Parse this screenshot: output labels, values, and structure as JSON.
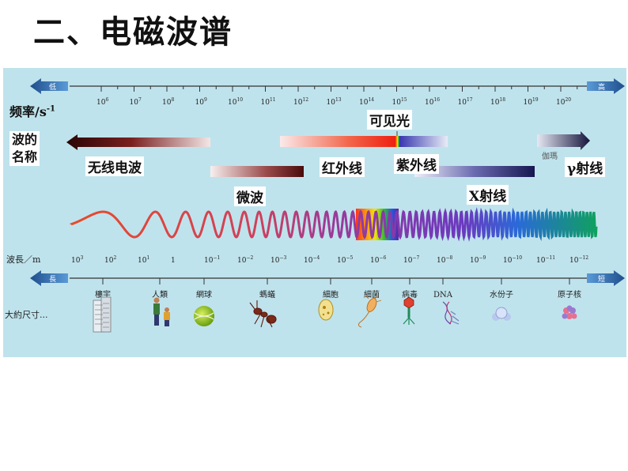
{
  "title": "二、电磁波谱",
  "colors": {
    "panel": "#bfe3ec",
    "arrow": "#1f4e8c",
    "band_dark": "#3a0a0a"
  },
  "freq": {
    "axis_label": "频率/s",
    "axis_label_exp": "-1",
    "low": "低",
    "high": "高",
    "exponents": [
      "6",
      "7",
      "8",
      "9",
      "10",
      "11",
      "12",
      "13",
      "14",
      "15",
      "16",
      "17",
      "18",
      "19",
      "20"
    ],
    "base": "10"
  },
  "bands": {
    "name_label_line1": "波的",
    "name_label_line2": "名称",
    "radio": "无线电波",
    "microwave": "微波",
    "infrared": "红外线",
    "visible": "可见光",
    "ultraviolet": "紫外线",
    "xray": "X射线",
    "gamma": "γ射线",
    "gamma_small": "伽瑪"
  },
  "wavelength": {
    "axis_label": "波長／m",
    "long": "長",
    "short": "短",
    "ticks": [
      {
        "base": "10",
        "exp": "3"
      },
      {
        "base": "10",
        "exp": "2"
      },
      {
        "base": "10",
        "exp": "1"
      },
      {
        "base": "1",
        "exp": ""
      },
      {
        "base": "10",
        "exp": "−1"
      },
      {
        "base": "10",
        "exp": "−2"
      },
      {
        "base": "10",
        "exp": "−3"
      },
      {
        "base": "10",
        "exp": "−4"
      },
      {
        "base": "10",
        "exp": "−5"
      },
      {
        "base": "10",
        "exp": "−6"
      },
      {
        "base": "10",
        "exp": "−7"
      },
      {
        "base": "10",
        "exp": "−8"
      },
      {
        "base": "10",
        "exp": "−9"
      },
      {
        "base": "10",
        "exp": "−10"
      },
      {
        "base": "10",
        "exp": "−11"
      },
      {
        "base": "10",
        "exp": "−12"
      }
    ]
  },
  "size": {
    "label": "大約尺寸...",
    "objects": [
      "樓宇",
      "人類",
      "網球",
      "螞蟻",
      "細胞",
      "細菌",
      "病毒",
      "DNA",
      "水份子",
      "原子核"
    ],
    "icons": [
      "building-icon",
      "people-icon",
      "tennis-ball-icon",
      "ant-icon",
      "cell-icon",
      "bacteria-icon",
      "virus-icon",
      "dna-icon",
      "water-molecule-icon",
      "atomic-nucleus-icon"
    ]
  }
}
